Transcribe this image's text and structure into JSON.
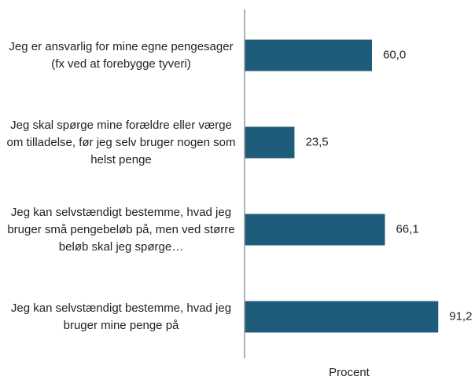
{
  "chart_data": {
    "type": "barh",
    "categories": [
      "Jeg er ansvarlig for mine egne pengesager (fx ved at forebygge tyveri)",
      "Jeg skal spørge mine forældre eller værge om tilladelse, før jeg selv bruger nogen som helst penge",
      "Jeg kan selvstændigt bestemme, hvad jeg bruger små pengebeløb på, men ved større beløb skal jeg spørge…",
      "Jeg kan selvstændigt bestemme, hvad jeg bruger mine penge på"
    ],
    "values": [
      60.0,
      23.5,
      66.1,
      91.2
    ],
    "value_labels": [
      "60,0",
      "23,5",
      "66,1",
      "91,2"
    ],
    "color": "#1f5b7b",
    "xlim": [
      0,
      100
    ],
    "xlabel": "Procent"
  }
}
